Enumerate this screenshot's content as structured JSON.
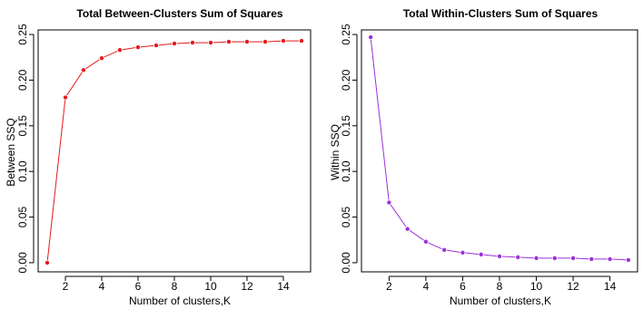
{
  "chart_data": [
    {
      "type": "line",
      "title": "Total Between-Clusters Sum of Squares",
      "xlabel": "Number of clusters,K",
      "ylabel": "Between SSQ",
      "xlim": [
        0.5,
        15.5
      ],
      "ylim": [
        -0.01,
        0.255
      ],
      "x_ticks": [
        2,
        4,
        6,
        8,
        10,
        12,
        14
      ],
      "y_ticks": [
        0.0,
        0.05,
        0.1,
        0.15,
        0.2,
        0.25
      ],
      "y_tick_labels": [
        "0.00",
        "0.05",
        "0.10",
        "0.15",
        "0.20",
        "0.25"
      ],
      "grid": false,
      "series": [
        {
          "color": "#e41a1c",
          "x": [
            1,
            2,
            3,
            4,
            5,
            6,
            7,
            8,
            9,
            10,
            11,
            12,
            13,
            14,
            15
          ],
          "values": [
            0.0,
            0.181,
            0.211,
            0.224,
            0.233,
            0.236,
            0.238,
            0.24,
            0.241,
            0.241,
            0.242,
            0.242,
            0.242,
            0.243,
            0.243
          ]
        }
      ]
    },
    {
      "type": "line",
      "title": "Total Within-Clusters Sum of Squares",
      "xlabel": "Number of clusters,K",
      "ylabel": "Within SSQ",
      "xlim": [
        0.5,
        15.5
      ],
      "ylim": [
        -0.01,
        0.255
      ],
      "x_ticks": [
        2,
        4,
        6,
        8,
        10,
        12,
        14
      ],
      "y_ticks": [
        0.0,
        0.05,
        0.1,
        0.15,
        0.2,
        0.25
      ],
      "y_tick_labels": [
        "0.00",
        "0.05",
        "0.10",
        "0.15",
        "0.20",
        "0.25"
      ],
      "grid": false,
      "series": [
        {
          "color": "#9b30d9",
          "x": [
            1,
            2,
            3,
            4,
            5,
            6,
            7,
            8,
            9,
            10,
            11,
            12,
            13,
            14,
            15
          ],
          "values": [
            0.247,
            0.066,
            0.037,
            0.023,
            0.014,
            0.011,
            0.009,
            0.007,
            0.006,
            0.005,
            0.005,
            0.005,
            0.004,
            0.004,
            0.003
          ]
        }
      ]
    }
  ]
}
